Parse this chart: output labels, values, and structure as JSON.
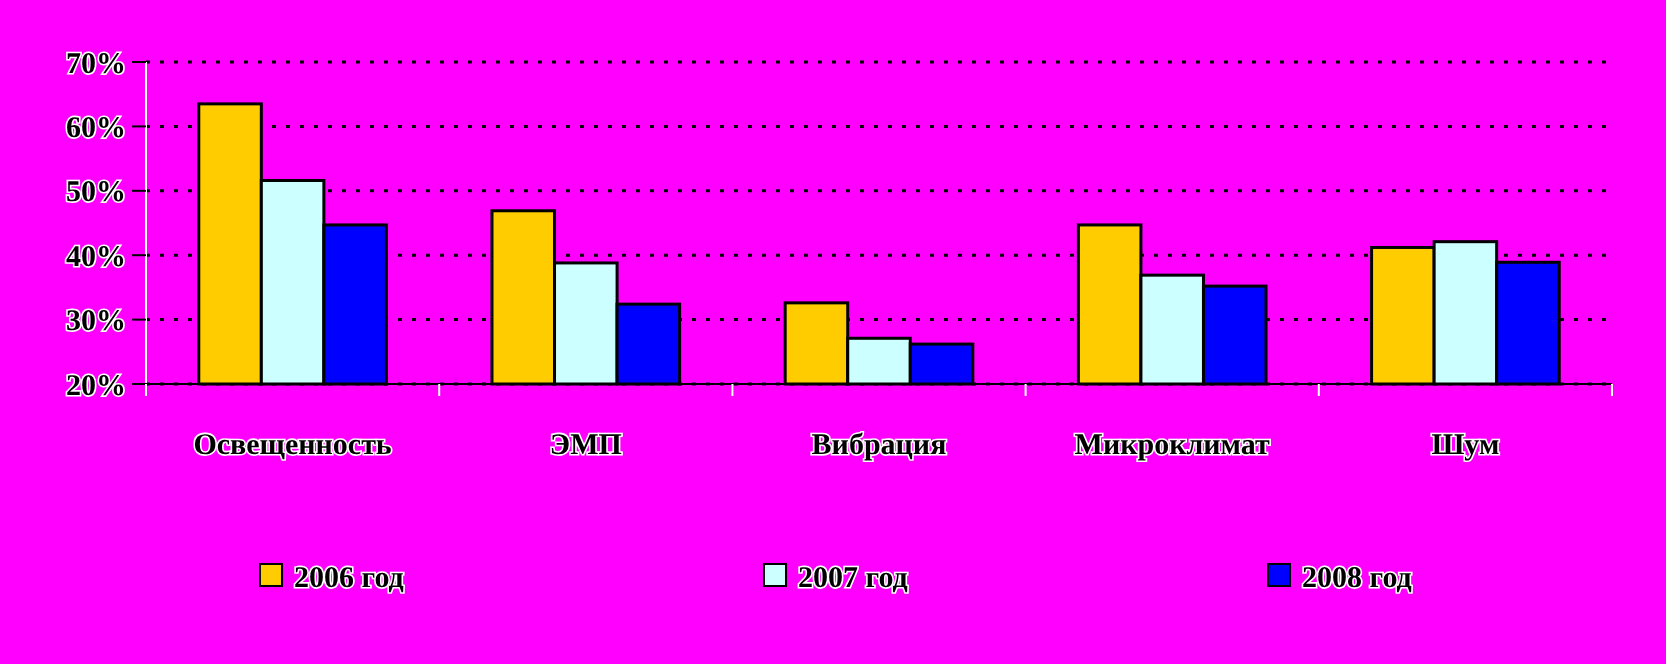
{
  "chart_data": {
    "type": "bar",
    "categories": [
      "Освещенность",
      "ЭМП",
      "Вибрация",
      "Микроклимат",
      "Шум"
    ],
    "series": [
      {
        "name": "2006 год",
        "color": "#ffcc00",
        "values": [
          63.5,
          46.9,
          32.6,
          44.7,
          41.2
        ]
      },
      {
        "name": "2007 год",
        "color": "#ccffff",
        "values": [
          51.6,
          38.8,
          27.1,
          36.9,
          42.1
        ]
      },
      {
        "name": "2008 год",
        "color": "#0000ff",
        "values": [
          44.7,
          32.4,
          26.2,
          35.2,
          38.9
        ]
      }
    ],
    "ylim": [
      20,
      70
    ],
    "yticks": [
      {
        "value": 20,
        "label": "20%"
      },
      {
        "value": 30,
        "label": "30%"
      },
      {
        "value": 40,
        "label": "40%"
      },
      {
        "value": 50,
        "label": "50%"
      },
      {
        "value": 60,
        "label": "60%"
      },
      {
        "value": 70,
        "label": "70%"
      }
    ],
    "grid": "y",
    "legend": "bottom"
  }
}
